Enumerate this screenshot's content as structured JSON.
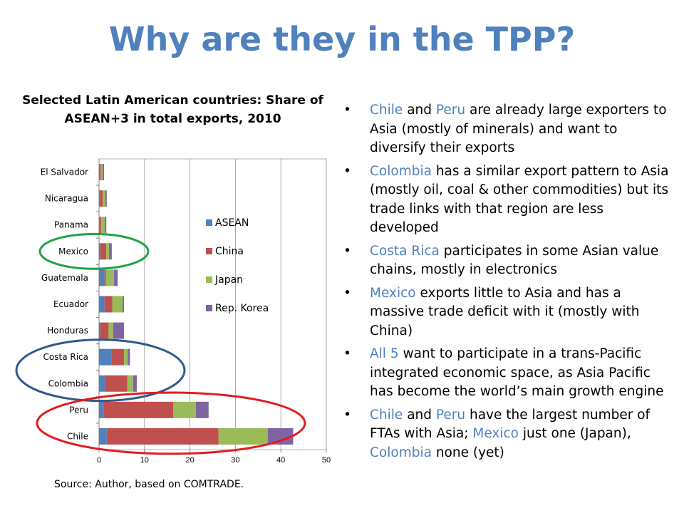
{
  "slide": {
    "title": "Why are they in the TPP?"
  },
  "chart_data": {
    "type": "bar",
    "orientation": "horizontal",
    "stacked": true,
    "title": "Selected Latin American countries: Share of ASEAN+3 in total exports, 2010",
    "xlabel": "",
    "ylabel": "",
    "xlim": [
      0,
      50
    ],
    "xticks": [
      0,
      10,
      20,
      30,
      40,
      50
    ],
    "categories": [
      "Chile",
      "Peru",
      "Colombia",
      "Costa Rica",
      "Honduras",
      "Ecuador",
      "Guatemala",
      "Mexico",
      "Panama",
      "Nicaragua",
      "El Salvador"
    ],
    "series": [
      {
        "name": "ASEAN",
        "color": "#4f81bd",
        "values": [
          1.7,
          1.0,
          1.3,
          2.7,
          0.3,
          1.2,
          1.2,
          0.3,
          0.2,
          0.2,
          0.2
        ]
      },
      {
        "name": "China",
        "color": "#c0504d",
        "values": [
          24.6,
          15.3,
          4.9,
          2.8,
          1.8,
          1.7,
          0.3,
          1.3,
          0.3,
          0.6,
          0.2
        ]
      },
      {
        "name": "Japan",
        "color": "#9bbb59",
        "values": [
          10.8,
          5.0,
          1.3,
          0.8,
          1.0,
          2.3,
          1.8,
          0.6,
          0.8,
          0.6,
          0.4
        ]
      },
      {
        "name": "Rep. Korea",
        "color": "#8064a2",
        "values": [
          5.6,
          2.8,
          0.8,
          0.5,
          2.4,
          0.3,
          0.8,
          0.6,
          0.3,
          0.3,
          0.3
        ]
      }
    ],
    "legend_position": "right",
    "highlights": [
      {
        "color": "#21a24a",
        "group": [
          "Mexico"
        ]
      },
      {
        "color": "#2e5a8a",
        "group": [
          "Costa Rica",
          "Colombia"
        ]
      },
      {
        "color": "#e21c21",
        "group": [
          "Peru",
          "Chile"
        ]
      }
    ]
  },
  "source": "Source: Author, based on COMTRADE.",
  "bullets": [
    [
      {
        "t": "Chile",
        "hl": true
      },
      {
        "t": " and "
      },
      {
        "t": "Peru",
        "hl": true
      },
      {
        "t": " are already large exporters to Asia (mostly of minerals) and want to diversify their exports"
      }
    ],
    [
      {
        "t": "Colombia",
        "hl": true
      },
      {
        "t": " has a similar export pattern to Asia (mostly oil, coal & other commodities) but its trade links with that region are less developed"
      }
    ],
    [
      {
        "t": "Costa Rica",
        "hl": true
      },
      {
        "t": " participates in some Asian value chains, mostly in electronics"
      }
    ],
    [
      {
        "t": "Mexico",
        "hl": true
      },
      {
        "t": " exports little to Asia and has a massive trade deficit with it (mostly with China)"
      }
    ],
    [
      {
        "t": "All 5",
        "hl": true
      },
      {
        "t": " want to participate in a trans-Pacific integrated economic space, as Asia Pacific has become the world’s main growth engine"
      }
    ],
    [
      {
        "t": "Chile",
        "hl": true
      },
      {
        "t": " and "
      },
      {
        "t": "Peru",
        "hl": true
      },
      {
        "t": " have the largest number of FTAs with Asia; "
      },
      {
        "t": "Mexico",
        "hl": true
      },
      {
        "t": " just one (Japan), "
      },
      {
        "t": "Colombia",
        "hl": true
      },
      {
        "t": " none (yet)"
      }
    ]
  ]
}
